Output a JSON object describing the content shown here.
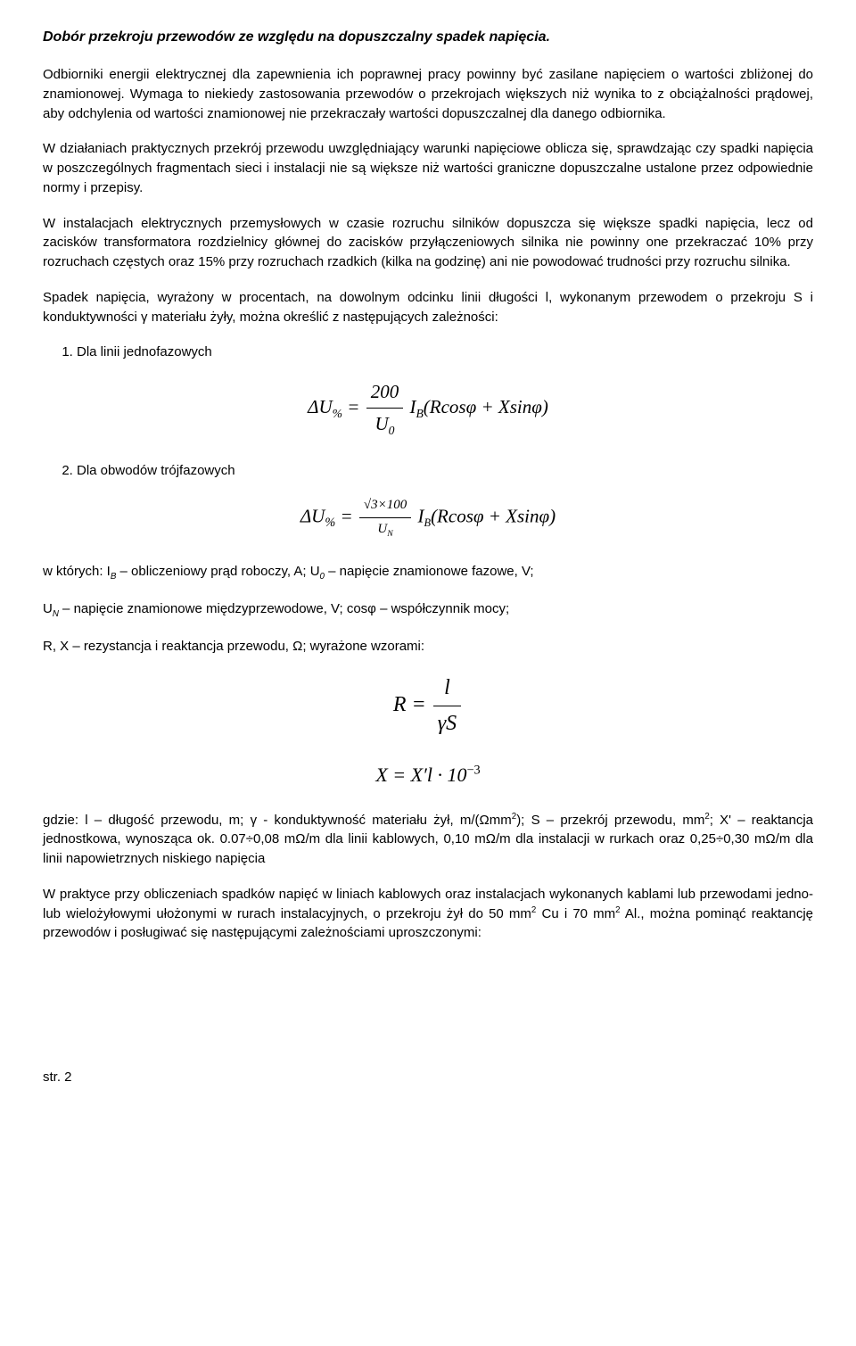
{
  "title": "Dobór przekroju przewodów ze względu na dopuszczalny spadek napięcia.",
  "para1": "Odbiorniki energii elektrycznej dla zapewnienia ich poprawnej pracy powinny być zasilane napięciem o wartości zbliżonej do znamionowej. Wymaga to niekiedy zastosowania przewodów o przekrojach większych niż wynika to z obciążalności prądowej, aby odchylenia od wartości znamionowej nie przekraczały wartości dopuszczalnej dla danego odbiornika.",
  "para2": "W działaniach praktycznych przekrój przewodu uwzględniający warunki napięciowe oblicza się, sprawdzając czy spadki napięcia w poszczególnych fragmentach sieci i instalacji nie są większe niż wartości graniczne dopuszczalne ustalone przez odpowiednie normy i przepisy.",
  "para3": "W instalacjach elektrycznych przemysłowych w czasie rozruchu silników dopuszcza się większe spadki napięcia, lecz od zacisków transformatora rozdzielnicy głównej do zacisków przyłączeniowych silnika nie powinny one przekraczać 10% przy rozruchach częstych oraz 15% przy rozruchach rzadkich (kilka na godzinę) ani nie powodować trudności przy rozruchu silnika.",
  "para4": "Spadek napięcia, wyrażony w procentach, na dowolnym odcinku linii długości l, wykonanym przewodem o przekroju S i konduktywności γ materiału żyły, można określić z następujących zależności:",
  "list1": "Dla linii jednofazowych",
  "list2": "Dla obwodów trójfazowych",
  "formula1": {
    "lhs_base": "ΔU",
    "lhs_sub": "%",
    "eq": " = ",
    "num": "200",
    "den_base": "U",
    "den_sub": "0",
    "tail_base1": " I",
    "tail_sub": "B",
    "tail_rest": "(Rcosφ + Xsinφ)"
  },
  "formula2": {
    "lhs_base": "ΔU",
    "lhs_sub": "%",
    "eq": " = ",
    "num": "√3×100",
    "den_base": "U",
    "den_sub": "N",
    "tail_base1": " I",
    "tail_sub": "B",
    "tail_rest": "(Rcosφ + Xsinφ)"
  },
  "para5_pre": "w których: I",
  "para5_sub1": "B",
  "para5_mid1": " – obliczeniowy prąd roboczy, A; U",
  "para5_sub2": "0",
  "para5_tail1": " – napięcie znamionowe fazowe, V;",
  "para6_pre": "U",
  "para6_sub": "N",
  "para6_tail": " – napięcie znamionowe międzyprzewodowe, V; cosφ – współczynnik mocy;",
  "para7": "R, X – rezystancja i reaktancja przewodu, Ω; wyrażone wzorami:",
  "formula3": {
    "lhs": "R = ",
    "num": "l",
    "den": "γS"
  },
  "formula4": {
    "full": "X = X′l · 10",
    "sup": "−3"
  },
  "para8_pre": "gdzie: l – długość przewodu, m; γ - konduktywność materiału żył, m/(Ωmm",
  "para8_sup1": "2",
  "para8_mid1": "); S – przekrój przewodu, mm",
  "para8_sup2": "2",
  "para8_tail": "; X' – reaktancja jednostkowa, wynosząca ok. 0.07÷0,08 mΩ/m dla linii kablowych, 0,10 mΩ/m dla instalacji w rurkach oraz 0,25÷0,30 mΩ/m dla linii napowietrznych niskiego napięcia",
  "para9_pre": "W praktyce przy obliczeniach spadków napięć w liniach kablowych oraz instalacjach wykonanych kablami lub przewodami jedno- lub wielożyłowymi ułożonymi w rurach instalacyjnych, o przekroju żył do 50 mm",
  "para9_sup1": "2",
  "para9_mid": " Cu i 70 mm",
  "para9_sup2": "2",
  "para9_tail": " Al., można pominąć reaktancję przewodów i posługiwać się następującymi zależnościami uproszczonymi:",
  "footer": "str. 2"
}
